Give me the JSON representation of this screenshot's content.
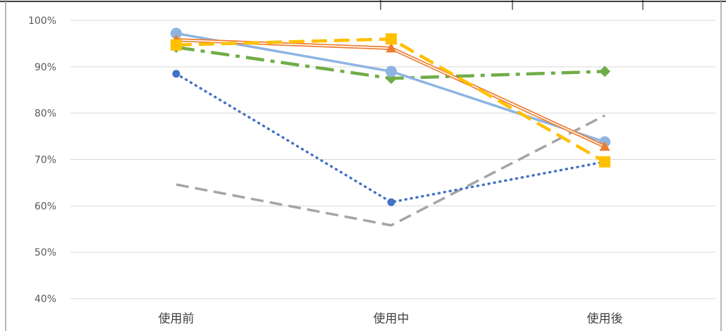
{
  "chart_data": {
    "type": "line",
    "title": "",
    "xlabel": "",
    "ylabel": "",
    "categories": [
      "使用前",
      "使用中",
      "使用後"
    ],
    "y_ticks": [
      "40%",
      "50%",
      "60%",
      "70%",
      "80%",
      "90%",
      "100%"
    ],
    "ylim": [
      40,
      100
    ],
    "grid": true,
    "legend": "none",
    "series": [
      {
        "values": [
          97.2,
          89.0,
          73.8
        ],
        "color": "#8db4e2",
        "style": "solid",
        "marker": "circle"
      },
      {
        "values": [
          95.8,
          94.0,
          72.8
        ],
        "color": "#ed7d31",
        "style": "double",
        "marker": "triangle"
      },
      {
        "values": [
          94.7,
          96.0,
          69.5
        ],
        "color": "#ffc000",
        "style": "dash",
        "marker": "square"
      },
      {
        "values": [
          94.2,
          87.5,
          89.0
        ],
        "color": "#70ad47",
        "style": "dashdot",
        "marker": "diamond"
      },
      {
        "values": [
          88.5,
          60.8,
          69.5
        ],
        "color": "#4472c4",
        "style": "dot",
        "marker": "circle-small"
      },
      {
        "values": [
          64.6,
          55.8,
          79.5
        ],
        "color": "#a5a5a5",
        "style": "dash-gray",
        "marker": "none"
      }
    ]
  }
}
